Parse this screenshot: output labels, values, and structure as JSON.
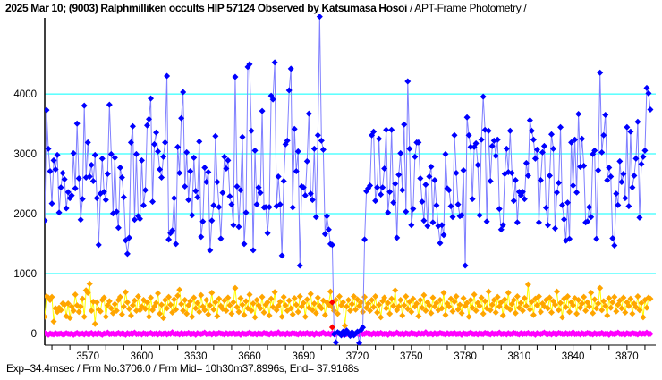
{
  "title": {
    "main": "2025 Mar 10; (9003) Ralphmilliken occults HIP 57124 Observed by Katsumasa Hosoi",
    "suffix": " / APT-Frame Photometry /"
  },
  "footer": "Exp=34.4msec / Frm No.3706.0 / Frm Mid= 10h30m37.8996s,  End= 37.9168s",
  "chart_data": {
    "type": "scatter",
    "title": "2025 Mar 10; (9003) Ralphmilliken occults HIP 57124 Observed by Katsumasa Hosoi / APT-Frame Photometry /",
    "xlabel": "",
    "ylabel": "",
    "xlim": [
      3546,
      3886
    ],
    "ylim": [
      -194,
      5270
    ],
    "x_ticks": [
      3570,
      3600,
      3630,
      3660,
      3690,
      3720,
      3750,
      3780,
      3810,
      3840,
      3870
    ],
    "x_minor_step": 10,
    "y_ticks": [
      0,
      1000,
      2000,
      3000,
      4000
    ],
    "grid_y": [
      1000,
      2000,
      3000,
      4000
    ],
    "grid_color": "#00ffff",
    "legend": "none",
    "x_start": 3546,
    "series": [
      {
        "color": "#ffa500",
        "line_color": "#ffff00",
        "values": [
          280,
          620,
          600,
          560,
          610,
          200,
          420,
          360,
          430,
          390,
          500,
          480,
          290,
          500,
          260,
          450,
          380,
          650,
          470,
          360,
          450,
          580,
          280,
          720,
          680,
          830,
          380,
          530,
          160,
          520,
          400,
          370,
          560,
          600,
          280,
          470,
          540,
          420,
          340,
          490,
          380,
          560,
          610,
          320,
          450,
          690,
          520,
          410,
          300,
          470,
          550,
          380,
          620,
          390,
          450,
          560,
          410,
          520,
          280,
          600,
          390,
          450,
          510,
          670,
          330,
          480,
          260,
          560,
          420,
          610,
          480,
          350,
          570,
          400,
          630,
          730,
          490,
          380,
          560,
          330,
          470,
          540,
          280,
          600,
          420,
          510,
          360,
          640,
          450,
          390,
          560,
          320,
          470,
          680,
          400,
          520,
          290,
          580,
          460,
          410,
          550,
          380,
          600,
          470,
          330,
          520,
          760,
          440,
          360,
          590,
          480,
          310,
          540,
          420,
          650,
          380,
          500,
          270,
          560,
          470,
          420,
          610,
          350,
          480,
          520,
          300,
          580,
          440,
          690,
          390,
          460,
          530,
          280,
          610,
          470,
          380,
          550,
          420,
          320,
          590,
          480,
          360,
          620,
          450,
          510,
          280,
          570,
          430,
          660,
          390,
          500,
          340,
          600,
          460,
          420,
          550,
          310,
          520,
          480,
          700,
          440,
          380,
          560,
          330,
          620,
          470,
          520,
          130,
          450,
          560,
          380,
          490,
          620,
          400,
          570,
          460,
          520,
          360,
          610,
          430,
          500,
          380,
          560,
          440,
          620,
          350,
          480,
          270,
          540,
          600,
          420,
          510,
          330,
          580,
          460,
          720,
          390,
          450,
          560,
          300,
          470,
          620,
          410,
          530,
          360,
          580,
          450,
          500,
          290,
          560,
          430,
          640,
          380,
          520,
          470,
          340,
          600,
          450,
          510,
          390,
          560,
          420,
          680,
          310,
          500,
          450,
          580,
          370,
          530,
          620,
          400,
          480,
          340,
          590,
          460,
          510,
          280,
          560,
          430,
          650,
          380,
          510,
          460,
          600,
          330,
          540,
          420,
          700,
          390,
          480,
          560,
          350,
          610,
          450,
          520,
          300,
          570,
          440,
          680,
          400,
          490,
          560,
          340,
          620,
          430,
          510,
          380,
          590,
          460,
          820,
          400,
          530,
          310,
          580,
          470,
          620,
          360,
          500,
          450,
          560,
          420,
          600,
          350,
          540,
          480,
          700,
          390,
          510,
          270,
          580,
          440,
          620,
          360,
          520,
          470,
          590,
          330,
          560,
          430,
          500,
          610,
          380,
          520,
          450,
          680,
          340,
          570,
          420,
          500,
          760,
          390,
          540,
          460,
          300,
          590,
          430,
          520,
          610,
          370,
          480,
          550,
          420,
          600,
          350,
          520,
          460,
          580,
          330,
          500,
          440,
          620,
          390,
          510,
          270,
          560,
          430,
          600,
          580
        ]
      },
      {
        "color": "#ff00ff",
        "line_color": "#ff00ff",
        "values": [
          10,
          -5,
          -20,
          0,
          -10,
          -15,
          5,
          -10,
          -5,
          0,
          -15,
          -10,
          5,
          -5,
          -10,
          0,
          -20,
          -5,
          10,
          -10,
          -5,
          0,
          -15,
          5,
          -10,
          -5,
          10,
          -15,
          0,
          -10,
          5,
          -5,
          -20,
          0,
          -5,
          15,
          -10,
          -5,
          0,
          -15,
          -5,
          10,
          -10,
          0,
          -5,
          -20,
          5,
          -10,
          0,
          -5,
          15,
          -10,
          -5,
          0,
          -15,
          5,
          -5,
          -10,
          0,
          10,
          -10,
          -5,
          0,
          -15,
          5,
          -10,
          -5,
          10,
          -15,
          0,
          -5,
          20,
          -10,
          -5,
          0,
          -15,
          5,
          -10,
          0,
          -5,
          10,
          -10,
          -5,
          0,
          -20,
          5,
          -5,
          -10,
          0,
          15,
          -10,
          -5,
          0,
          -15,
          5,
          -10,
          -5,
          10,
          0,
          -5,
          -15,
          5,
          -10,
          0,
          -5,
          10,
          -10,
          -5,
          0,
          -20,
          5,
          -5,
          -10,
          0,
          15,
          -5,
          -10,
          0,
          -15,
          5,
          -5,
          -10,
          10,
          0,
          -5,
          -15,
          5,
          -10,
          0,
          -5,
          20,
          -10,
          -5,
          0,
          -15,
          5,
          -10,
          -5,
          10,
          0,
          -5,
          -15,
          5,
          -10,
          0,
          -5,
          10,
          -10,
          -5,
          0,
          -20,
          5,
          -5,
          -10,
          0,
          15,
          -5,
          -10,
          0,
          -15,
          5,
          -5,
          -10,
          10,
          0,
          -5,
          -15,
          5,
          -10,
          0,
          -5,
          15,
          -10,
          -5,
          0,
          -15,
          5,
          -10,
          -5,
          10,
          0,
          -5,
          -15,
          5,
          -10,
          0,
          -5,
          10,
          -10,
          -5,
          0,
          -20,
          5,
          -5,
          -10,
          0,
          15,
          -5,
          -10,
          0,
          -15,
          5,
          -5,
          -10,
          10,
          0,
          -5,
          -15,
          5,
          -10,
          0,
          -5,
          20,
          -10,
          -5,
          0,
          -15,
          5,
          -10,
          -5,
          10,
          0,
          -5,
          -15,
          5,
          -10,
          0,
          -5,
          10,
          -10,
          -5,
          0,
          -20,
          5,
          -5,
          -10,
          0,
          15,
          -5,
          -10,
          0,
          -15,
          5,
          -5,
          -10,
          10,
          0,
          -5,
          -15,
          5,
          -10,
          0,
          -5,
          15,
          -10,
          -5,
          0,
          -15,
          5,
          -10,
          -5,
          10,
          0,
          -5,
          -15,
          5,
          -10,
          0,
          -5,
          10,
          -10,
          -5,
          0,
          -20,
          5,
          -5,
          -10,
          0,
          15,
          -5,
          -10,
          0,
          -15,
          5,
          -5,
          -10,
          10,
          0,
          -5,
          -15,
          5,
          -10,
          0,
          -5,
          20,
          -10,
          -5,
          0,
          -15,
          5,
          -10,
          -5,
          10,
          0,
          -5,
          -15,
          5,
          -10,
          0,
          -5,
          10,
          -10,
          -5,
          0,
          -20,
          5,
          -5,
          -10,
          0,
          15,
          -5,
          -10,
          0,
          -15,
          5,
          -5,
          -10,
          10,
          0,
          -5,
          -15,
          5,
          -10,
          0,
          -5,
          15,
          -10,
          -5
        ]
      },
      {
        "color": "#0000ff",
        "line_color": "#8080ff",
        "values": [
          1885,
          3730,
          3085,
          2710,
          2170,
          2890,
          2740,
          2980,
          2020,
          2440,
          2680,
          2575,
          2090,
          2360,
          2260,
          2305,
          3010,
          2425,
          3505,
          2590,
          1900,
          2245,
          3805,
          2605,
          3190,
          2620,
          2815,
          2545,
          2980,
          2260,
          1480,
          2335,
          2920,
          2365,
          2230,
          2665,
          3820,
          2995,
          2005,
          2935,
          2035,
          1765,
          2770,
          2605,
          2275,
          1555,
          1330,
          1600,
          3190,
          3460,
          1900,
          2995,
          1960,
          1915,
          2890,
          2140,
          2395,
          3475,
          3580,
          3925,
          2200,
          3160,
          3355,
          3040,
          2740,
          2605,
          2950,
          3190,
          4300,
          1570,
          1675,
          1720,
          2260,
          1495,
          3115,
          2680,
          3595,
          4030,
          2455,
          3025,
          2230,
          2710,
          1975,
          2935,
          2380,
          2275,
          3205,
          1615,
          1870,
          2770,
          2530,
          2695,
          1390,
          1885,
          2140,
          3295,
          2530,
          2110,
          1585,
          2350,
          2950,
          2755,
          2890,
          2290,
          2155,
          1810,
          4285,
          2455,
          1780,
          2395,
          3280,
          1495,
          2020,
          4450,
          4495,
          3385,
          1390,
          3055,
          2155,
          2440,
          2350,
          3715,
          2105,
          2110,
          1675,
          2110,
          3970,
          3910,
          4525,
          2125,
          2620,
          2155,
          1300,
          2545,
          3160,
          3220,
          4060,
          4420,
          2105,
          3415,
          2710,
          3040,
          1135,
          2455,
          2440,
          2305,
          2875,
          3670,
          2335,
          2230,
          3085,
          1945,
          3310,
          5290,
          3220,
          3070,
          1660,
          1960,
          1735,
          1495,
          1480,
          -10,
          -150,
          20,
          0,
          -30,
          30,
          -20,
          50,
          10,
          -40,
          20,
          -30,
          0,
          30,
          -160,
          60,
          100,
          1570,
          2375,
          2425,
          2470,
          3310,
          3370,
          2215,
          2440,
          3250,
          2320,
          2440,
          2755,
          3400,
          2020,
          2365,
          3400,
          2185,
          2500,
          1600,
          2650,
          3010,
          2395,
          3490,
          2035,
          4210,
          3085,
          1810,
          2080,
          2950,
          3190,
          3190,
          2590,
          2200,
          1885,
          2485,
          1795,
          2620,
          2785,
          1855,
          2560,
          2140,
          1795,
          1510,
          1810,
          1645,
          2995,
          2425,
          2395,
          2125,
          1945,
          3310,
          2680,
          2155,
          1960,
          1975,
          2725,
          1135,
          3610,
          3310,
          3115,
          2245,
          3115,
          3175,
          2815,
          1975,
          3235,
          3955,
          3400,
          1870,
          3385,
          2545,
          3130,
          3220,
          2965,
          3235,
          2080,
          1735,
          1810,
          2665,
          3085,
          2695,
          3385,
          2680,
          2215,
          2560,
          1855,
          2365,
          2305,
          2365,
          2245,
          2845,
          2635,
          3560,
          3385,
          3235,
          2920,
          3070,
          1855,
          2560,
          3025,
          3130,
          2100,
          1810,
          2635,
          3325,
          3085,
          1755,
          2355,
          2515,
          3445,
          2145,
          1905,
          1550,
          2185,
          1580,
          3190,
          2470,
          3235,
          2355,
          3665,
          2785,
          3250,
          2800,
          1855,
          1870,
          2110,
          1945,
          2995,
          3055,
          1580,
          2725,
          4355,
          3025,
          3310,
          3650,
          2560,
          2770,
          2620,
          1590,
          1470,
          2335,
          2145,
          2875,
          2530,
          2665,
          2260,
          3445,
          2125,
          3370,
          2440,
          2635,
          2920,
          3535,
          1935,
          2830,
          2950,
          3055,
          4100,
          4010,
          3740
        ]
      }
    ],
    "highlight": {
      "color": "#ff0000",
      "points": [
        {
          "x": 3706,
          "y": 520
        },
        {
          "x": 3706,
          "y": 105
        }
      ]
    }
  }
}
